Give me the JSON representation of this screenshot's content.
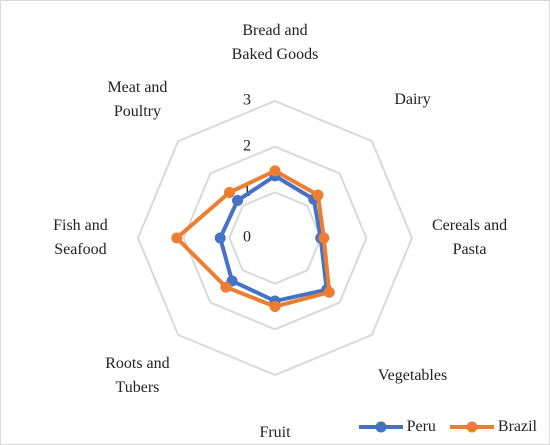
{
  "chart_data": {
    "type": "radar",
    "categories": [
      "Bread and Baked Goods",
      "Dairy",
      "Cereals and Pasta",
      "Vegetables",
      "Fruit",
      "Roots and Tubers",
      "Fish and Seafood",
      "Meat and Poultry"
    ],
    "series": [
      {
        "name": "Peru",
        "color": "#4472c4",
        "values": [
          1.36,
          1.2,
          1.0,
          1.6,
          1.38,
          1.33,
          1.2,
          1.16
        ]
      },
      {
        "name": "Brazil",
        "color": "#ed7d31",
        "values": [
          1.47,
          1.33,
          1.07,
          1.68,
          1.5,
          1.52,
          2.15,
          1.41
        ]
      }
    ],
    "ylim": [
      0,
      3
    ],
    "yticks": [
      0,
      1,
      2,
      3
    ],
    "grid": true,
    "legend": "bottom-right"
  }
}
